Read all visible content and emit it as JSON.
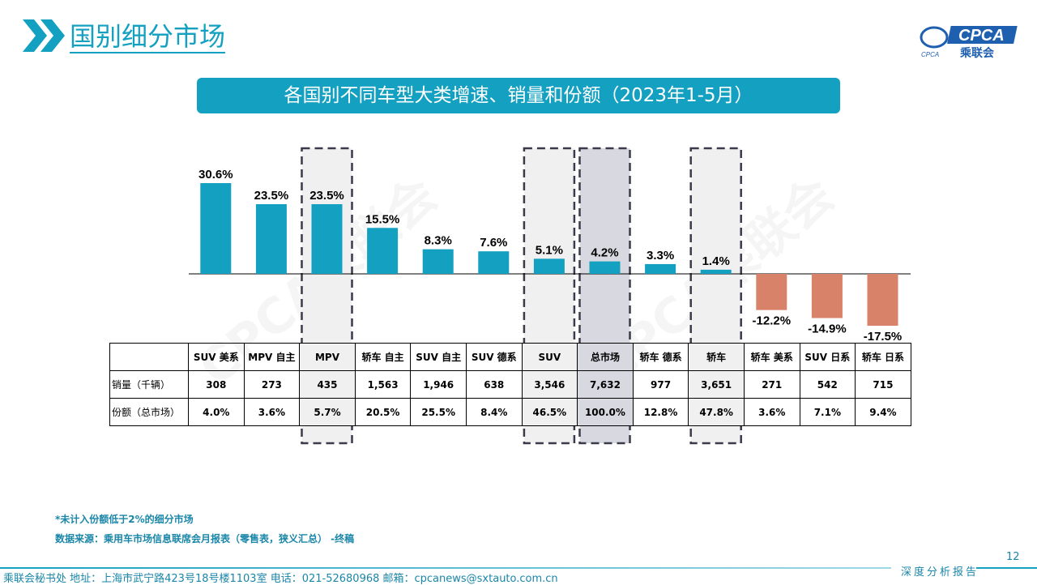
{
  "header": {
    "title": "国别细分市场",
    "logo_text": "CPCA",
    "logo_sub": "乘联会",
    "logo_small": "CPCA"
  },
  "banner": "各国别不同车型大类增速、销量和份额（2023年1-5月）",
  "chart_data": {
    "type": "bar",
    "categories": [
      "SUV 美系",
      "MPV 自主",
      "MPV",
      "轿车 自主",
      "SUV 自主",
      "SUV 德系",
      "SUV",
      "总市场",
      "轿车 德系",
      "轿车",
      "轿车 美系",
      "SUV 日系",
      "轿车 日系"
    ],
    "values": [
      30.6,
      23.5,
      23.5,
      15.5,
      8.3,
      7.6,
      5.1,
      4.2,
      3.3,
      1.4,
      -12.2,
      -14.9,
      -17.5
    ],
    "value_labels": [
      "30.6%",
      "23.5%",
      "23.5%",
      "15.5%",
      "8.3%",
      "7.6%",
      "5.1%",
      "4.2%",
      "3.3%",
      "1.4%",
      "-12.2%",
      "-14.9%",
      "-17.5%"
    ],
    "highlighted": [
      "MPV",
      "SUV",
      "总市场",
      "轿车"
    ],
    "colors": {
      "positive": "#14a0c0",
      "negative": "#d9826a",
      "highlight_bg": "#f0f0f0",
      "total_bg": "#d8d8e0"
    },
    "table": {
      "rows": [
        {
          "label": "销量（千辆）",
          "values": [
            "308",
            "273",
            "435",
            "1,563",
            "1,946",
            "638",
            "3,546",
            "7,632",
            "977",
            "3,651",
            "271",
            "542",
            "715"
          ]
        },
        {
          "label": "份额（总市场）",
          "values": [
            "4.0%",
            "3.6%",
            "5.7%",
            "20.5%",
            "25.5%",
            "8.4%",
            "46.5%",
            "100.0%",
            "12.8%",
            "47.8%",
            "3.6%",
            "7.1%",
            "9.4%"
          ]
        }
      ]
    }
  },
  "notes": [
    "*未计入份额低于2%的细分市场",
    "数据来源：乘用车市场信息联席会月报表（零售表，狭义汇总） -终稿"
  ],
  "footer": {
    "address": "乘联会秘书处   地址：上海市武宁路423号18号楼1103室  电话：021-52680968   邮箱：cpcanews@sxtauto.com.cn",
    "page": "12",
    "tag": "深度分析报告"
  }
}
